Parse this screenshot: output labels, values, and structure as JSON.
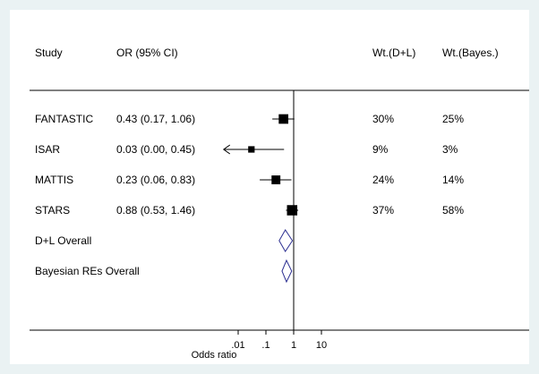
{
  "chart_data": {
    "type": "forest",
    "columns": {
      "study": "Study",
      "or_ci": "OR (95% CI)",
      "wt_dl": "Wt.(D+L)",
      "wt_bayes": "Wt.(Bayes.)"
    },
    "studies": [
      {
        "name": "FANTASTIC",
        "or_ci_text": "0.43 (0.17, 1.06)",
        "or": 0.43,
        "ci": [
          0.17,
          1.06
        ],
        "wt_dl": "30%",
        "wt_bayes": "25%",
        "marker_weight": 0.3
      },
      {
        "name": "ISAR",
        "or_ci_text": "0.03 (0.00, 0.45)",
        "or": 0.03,
        "ci": [
          0.0,
          0.45
        ],
        "wt_dl": "9%",
        "wt_bayes": "3%",
        "marker_weight": 0.09,
        "lower_truncated": true
      },
      {
        "name": "MATTIS",
        "or_ci_text": "0.23 (0.06, 0.83)",
        "or": 0.23,
        "ci": [
          0.06,
          0.83
        ],
        "wt_dl": "24%",
        "wt_bayes": "14%",
        "marker_weight": 0.24
      },
      {
        "name": "STARS",
        "or_ci_text": "0.88 (0.53, 1.46)",
        "or": 0.88,
        "ci": [
          0.53,
          1.46
        ],
        "wt_dl": "37%",
        "wt_bayes": "58%",
        "marker_weight": 0.37
      }
    ],
    "overall": [
      {
        "name": "D+L Overall",
        "or": 0.5,
        "ci": [
          0.3,
          0.9
        ]
      },
      {
        "name": "Bayesian REs Overall",
        "or": 0.55,
        "ci": [
          0.38,
          0.85
        ]
      }
    ],
    "x_axis": {
      "label": "Odds ratio",
      "scale": "log",
      "ticks": [
        0.01,
        0.1,
        1,
        10
      ],
      "tick_labels": [
        ".01",
        ".1",
        "1",
        "10"
      ],
      "xlim": [
        0.001,
        100
      ],
      "null_line": 1
    },
    "colors": {
      "point": "#000000",
      "diamond": "#2e3192",
      "background": "#eaf2f3"
    }
  }
}
